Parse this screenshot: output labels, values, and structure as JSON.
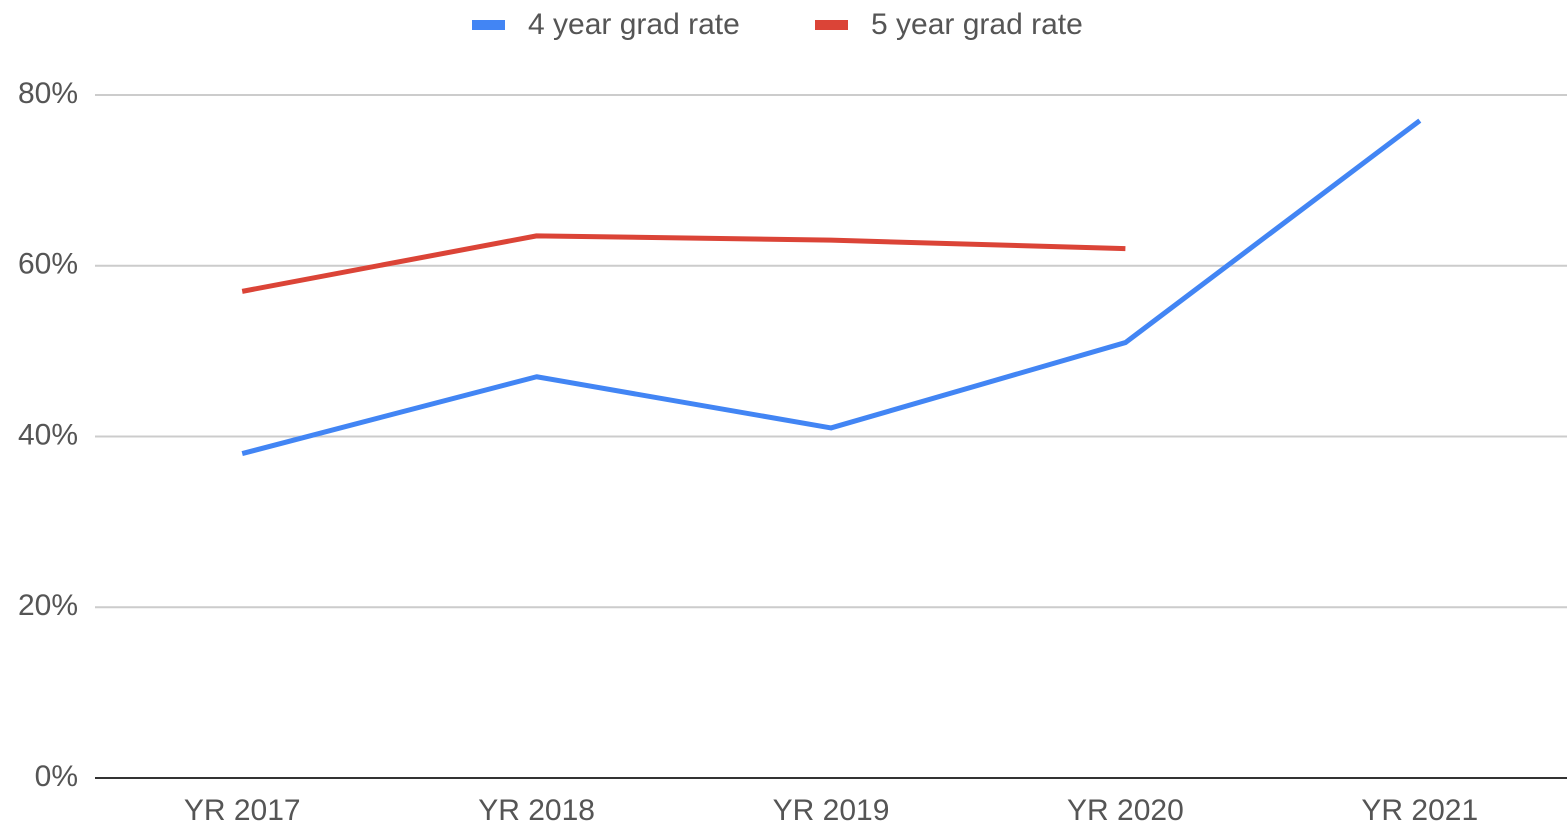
{
  "chart_data": {
    "type": "line",
    "categories": [
      "YR 2017",
      "YR 2018",
      "YR 2019",
      "YR 2020",
      "YR 2021"
    ],
    "series": [
      {
        "name": "4 year grad rate",
        "color": "#4285f4",
        "values": [
          38,
          47,
          41,
          51,
          77
        ]
      },
      {
        "name": "5 year grad rate",
        "color": "#db4437",
        "values": [
          57,
          63.5,
          63,
          62,
          null
        ]
      }
    ],
    "ylim": [
      0,
      80
    ],
    "yticks": [
      {
        "value": 0,
        "label": "0%"
      },
      {
        "value": 20,
        "label": "20%"
      },
      {
        "value": 40,
        "label": "40%"
      },
      {
        "value": 60,
        "label": "60%"
      },
      {
        "value": 80,
        "label": "80%"
      }
    ],
    "grid": true,
    "legend": "top"
  }
}
